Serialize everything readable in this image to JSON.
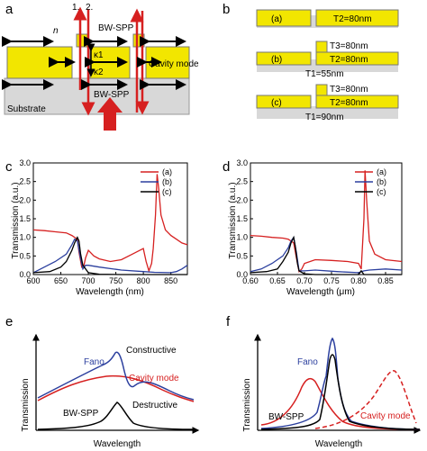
{
  "panel_labels": {
    "a": "a",
    "b": "b",
    "c": "c",
    "d": "d",
    "e": "e",
    "f": "f"
  },
  "panel_a": {
    "mode1": "1.",
    "mode2": "2.",
    "n": "n",
    "bw_spp_top": "BW-SPP",
    "kappa1": "κ1",
    "kappa2": "κ2",
    "cavity_mode": "Cavity mode",
    "bw_spp_bottom": "BW-SPP",
    "substrate": "Substrate"
  },
  "panel_b": {
    "a_label": "(a)",
    "a_t2": "T2=80nm",
    "b_label": "(b)",
    "b_t3": "T3=80nm",
    "b_t2": "T2=80nm",
    "b_t1": "T1=55nm",
    "c_label": "(c)",
    "c_t3": "T3=80nm",
    "c_t2": "T2=80nm",
    "c_t1": "T1=90nm"
  },
  "colors": {
    "a": "#d62020",
    "b": "#2b3f9e",
    "c": "#000000"
  },
  "chart_data": [
    {
      "type": "line",
      "title": "",
      "xlabel": "Wavelength (nm)",
      "ylabel": "Transmission (a.u.)",
      "xlim": [
        600,
        880
      ],
      "ylim": [
        0.0,
        3.0
      ],
      "xticks": [
        "600",
        "650",
        "700",
        "750",
        "800",
        "850"
      ],
      "yticks": [
        "0.0",
        "0.5",
        "1.0",
        "1.5",
        "2.0",
        "2.5",
        "3.0"
      ],
      "legend": "top-right",
      "grid": false,
      "series": [
        {
          "name": "(a)",
          "x": [
            600,
            620,
            640,
            660,
            670,
            680,
            683,
            688,
            692,
            695,
            700,
            710,
            720,
            740,
            760,
            780,
            800,
            805,
            810,
            815,
            818,
            822,
            825,
            828,
            832,
            840,
            850,
            860,
            870,
            880
          ],
          "y": [
            1.2,
            1.18,
            1.15,
            1.12,
            1.05,
            0.95,
            0.6,
            0.2,
            0.25,
            0.45,
            0.65,
            0.5,
            0.42,
            0.35,
            0.4,
            0.55,
            0.7,
            0.35,
            0.1,
            0.3,
            0.7,
            1.6,
            2.7,
            2.3,
            1.6,
            1.2,
            1.05,
            0.95,
            0.85,
            0.8
          ]
        },
        {
          "name": "(b)",
          "x": [
            600,
            620,
            640,
            660,
            670,
            675,
            680,
            685,
            690,
            695,
            700,
            720,
            760,
            800,
            820,
            850,
            860,
            870,
            880
          ],
          "y": [
            0.05,
            0.2,
            0.35,
            0.55,
            0.8,
            0.95,
            0.9,
            0.5,
            0.15,
            0.25,
            0.25,
            0.2,
            0.12,
            0.08,
            0.06,
            0.05,
            0.08,
            0.15,
            0.25
          ]
        },
        {
          "name": "(c)",
          "x": [
            600,
            630,
            650,
            660,
            670,
            675,
            680,
            683,
            686,
            690,
            700,
            720,
            760,
            800,
            840,
            880
          ],
          "y": [
            0.05,
            0.08,
            0.2,
            0.35,
            0.65,
            0.85,
            1.0,
            0.9,
            0.55,
            0.25,
            0.05,
            0.01,
            0.0,
            0.0,
            0.0,
            0.0
          ]
        }
      ]
    },
    {
      "type": "line",
      "title": "",
      "xlabel": "Wavelength (μm)",
      "ylabel": "Transmission (a.u.)",
      "xlim": [
        0.6,
        0.88
      ],
      "ylim": [
        0.0,
        3.0
      ],
      "xticks": [
        "0.60",
        "0.65",
        "0.70",
        "0.75",
        "0.80",
        "0.85"
      ],
      "yticks": [
        "0.0",
        "0.5",
        "1.0",
        "1.5",
        "2.0",
        "2.5",
        "3.0"
      ],
      "legend": "top-right",
      "grid": false,
      "series": [
        {
          "name": "(a)",
          "x": [
            0.6,
            0.62,
            0.64,
            0.66,
            0.67,
            0.68,
            0.685,
            0.69,
            0.695,
            0.7,
            0.72,
            0.75,
            0.78,
            0.8,
            0.805,
            0.81,
            0.812,
            0.815,
            0.82,
            0.83,
            0.85,
            0.88
          ],
          "y": [
            1.05,
            1.03,
            1.0,
            0.98,
            0.95,
            0.85,
            0.45,
            0.08,
            0.15,
            0.3,
            0.4,
            0.38,
            0.35,
            0.3,
            0.15,
            1.5,
            2.8,
            2.0,
            0.9,
            0.55,
            0.4,
            0.35
          ]
        },
        {
          "name": "(b)",
          "x": [
            0.6,
            0.62,
            0.64,
            0.66,
            0.67,
            0.675,
            0.68,
            0.685,
            0.69,
            0.7,
            0.72,
            0.76,
            0.8,
            0.81,
            0.82,
            0.85,
            0.88
          ],
          "y": [
            0.08,
            0.15,
            0.3,
            0.5,
            0.72,
            0.9,
            1.0,
            0.6,
            0.1,
            0.1,
            0.12,
            0.08,
            0.05,
            0.1,
            0.12,
            0.15,
            0.12
          ]
        },
        {
          "name": "(c)",
          "x": [
            0.6,
            0.63,
            0.65,
            0.66,
            0.67,
            0.675,
            0.68,
            0.683,
            0.687,
            0.69,
            0.7,
            0.72,
            0.8,
            0.805,
            0.81,
            0.82,
            0.88
          ],
          "y": [
            0.05,
            0.08,
            0.15,
            0.35,
            0.6,
            0.85,
            1.0,
            0.75,
            0.3,
            0.1,
            0.02,
            0.0,
            0.0,
            0.1,
            0.0,
            0.0,
            0.0
          ]
        }
      ]
    }
  ],
  "panel_e": {
    "ylabel": "Transmission",
    "xlabel": "Wavelength",
    "fano": "Fano",
    "constructive": "Constructive",
    "cavity_mode": "Cavity mode",
    "bw_spp": "BW-SPP",
    "destructive": "Destructive"
  },
  "panel_f": {
    "ylabel": "Transmission",
    "xlabel": "Wavelength",
    "fano": "Fano",
    "bw_spp": "BW-SPP",
    "cavity_mode": "Cavity mode"
  }
}
